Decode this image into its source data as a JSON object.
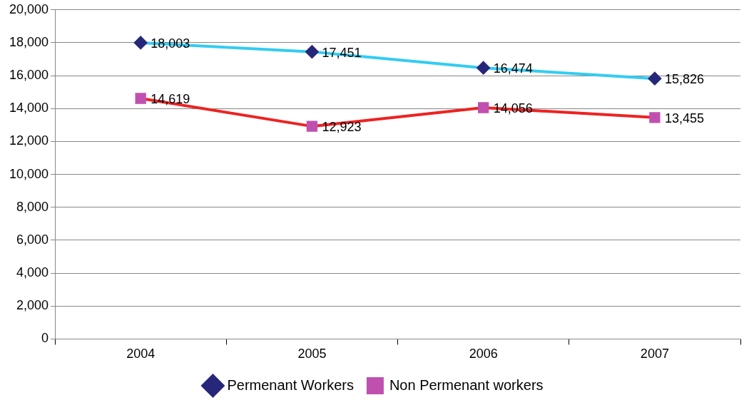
{
  "chart_data": {
    "type": "line",
    "categories": [
      "2004",
      "2005",
      "2006",
      "2007"
    ],
    "series": [
      {
        "name": "Permenant Workers",
        "color": "#33ccf2",
        "values": [
          18003,
          17451,
          16474,
          15826
        ],
        "value_labels": [
          "18,003",
          "17,451",
          "16,474",
          "15,826"
        ],
        "marker": "diamond"
      },
      {
        "name": "Non Permenant workers",
        "color": "#ee2222",
        "values": [
          14619,
          12923,
          14056,
          13455
        ],
        "value_labels": [
          "14,619",
          "12,923",
          "14,056",
          "13,455"
        ],
        "marker": "square"
      }
    ],
    "ylim": [
      0,
      20000
    ],
    "yticks": [
      0,
      {
        "value": 2000,
        "label": "2,000"
      },
      {
        "value": 4000,
        "label": "4,000"
      },
      {
        "value": 6000,
        "label": "6,000"
      },
      {
        "value": 8000,
        "label": "8,000"
      },
      {
        "value": 10000,
        "label": "10,000"
      },
      {
        "value": 12000,
        "label": "12,000"
      },
      {
        "value": 14000,
        "label": "14,000"
      },
      {
        "value": 16000,
        "label": "16,000"
      },
      {
        "value": 18000,
        "label": "18,000"
      },
      {
        "value": 20000,
        "label": "20,000"
      }
    ],
    "grid": "y",
    "legend": "bottom"
  }
}
